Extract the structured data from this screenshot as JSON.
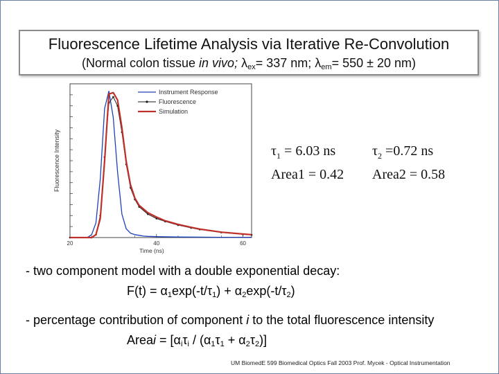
{
  "slide": {
    "title": "Fluorescence Lifetime Analysis via Iterative Re-Convolution",
    "subtitle": {
      "open": "(Normal colon tissue ",
      "italic": "in vivo;",
      "lambda1": " λ",
      "sub1": "ex",
      "mid": "= 337 nm; λ",
      "sub2": "em",
      "close": "= 550 ± 20 nm)"
    },
    "params": {
      "tau1_sym": "τ",
      "tau1_sub": "1",
      "tau1_val": " = 6.03 ns",
      "tau2_sym": "τ",
      "tau2_sub": "2",
      "tau2_val": " =0.72 ns",
      "area1": "Area1 = 0.42",
      "area2": "Area2 = 0.58"
    },
    "bullet1": "-  two component model with a double exponential decay:",
    "equation1": {
      "a": "F(t) = α",
      "s1": "1",
      "b": "exp(-t/τ",
      "s2": "1",
      "c": ") + α",
      "s3": "2",
      "d": "exp(-t/τ",
      "s4": "2",
      "e": ")"
    },
    "bullet2": "- percentage contribution of component ",
    "bullet2_italic": "i",
    "bullet2_end": " to the total fluorescence intensity",
    "equation2": {
      "a": "Area",
      "ai": "i",
      "b": " = [α",
      "s1": "i",
      "c": "τ",
      "s2": "i",
      "d": " / (α",
      "s3": "1",
      "e": "τ",
      "s4": "1",
      "f": " + α",
      "s5": "2",
      "g": "τ",
      "s6": "2",
      "h": ")]"
    },
    "footer": "UM BiomedE 599 Biomedical Optics Fall 2003 Prof. Mycek - Optical Instrumentation"
  },
  "chart_data": {
    "type": "line",
    "xlabel": "Time (ns)",
    "ylabel": "Fluorescence Intensity",
    "xlim": [
      20,
      62
    ],
    "ylim": [
      0,
      1.05
    ],
    "xticks": [
      20,
      40,
      60
    ],
    "legend_position": "top-right",
    "series": [
      {
        "name": "Instrument Response",
        "color": "#1f3fb8",
        "x": [
          20,
          24,
          25,
          26,
          27,
          28,
          29,
          30,
          31,
          32,
          33,
          34,
          35,
          36,
          37,
          38,
          40,
          45,
          50,
          55,
          60,
          62
        ],
        "y": [
          0,
          0,
          0.02,
          0.1,
          0.4,
          0.88,
          1.0,
          0.82,
          0.45,
          0.16,
          0.06,
          0.03,
          0.02,
          0.015,
          0.01,
          0.008,
          0.006,
          0.004,
          0.003,
          0.002,
          0.002,
          0.002
        ]
      },
      {
        "name": "Fluorescence",
        "color": "#1a1a1a",
        "x": [
          20,
          25,
          26,
          27,
          28,
          29,
          30,
          31,
          32,
          33,
          34,
          35,
          36,
          38,
          40,
          42,
          45,
          48,
          50,
          55,
          60,
          62
        ],
        "y": [
          0,
          0,
          0.02,
          0.15,
          0.55,
          0.92,
          0.96,
          0.9,
          0.72,
          0.5,
          0.34,
          0.26,
          0.21,
          0.16,
          0.13,
          0.11,
          0.085,
          0.066,
          0.055,
          0.035,
          0.022,
          0.018
        ]
      },
      {
        "name": "Simulation",
        "color": "#c0302a",
        "x": [
          20,
          25,
          26,
          27,
          28,
          29,
          30,
          31,
          32,
          33,
          34,
          35,
          36,
          38,
          40,
          42,
          45,
          48,
          50,
          55,
          60,
          62
        ],
        "y": [
          0,
          0,
          0.02,
          0.13,
          0.52,
          0.98,
          0.99,
          0.94,
          0.75,
          0.52,
          0.36,
          0.27,
          0.22,
          0.17,
          0.14,
          0.115,
          0.09,
          0.07,
          0.058,
          0.037,
          0.024,
          0.02
        ]
      }
    ]
  }
}
